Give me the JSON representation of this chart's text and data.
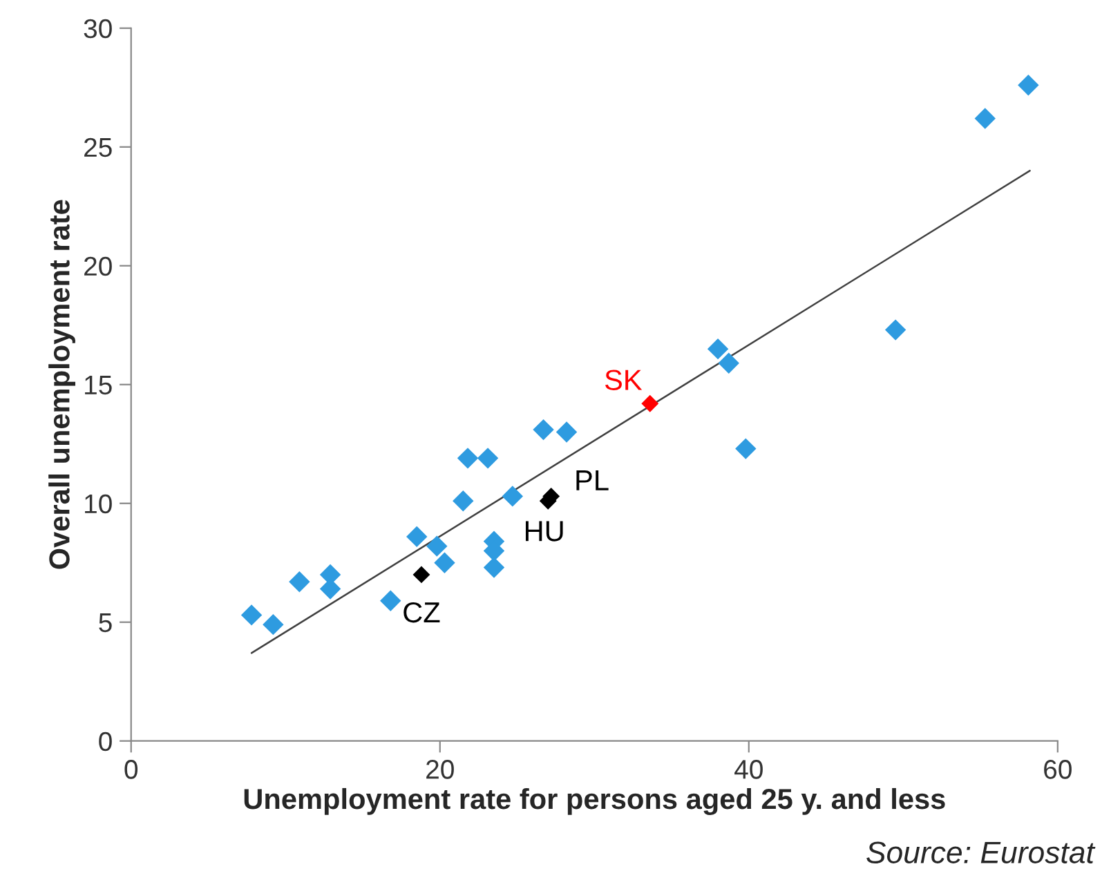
{
  "chart_data": {
    "type": "scatter",
    "xlabel": "Unemployment rate for persons aged 25 y. and less",
    "ylabel": "Overall unemployment rate",
    "xlim": [
      0,
      60
    ],
    "xticks": [
      0,
      20,
      40,
      60
    ],
    "ylim": [
      0,
      30
    ],
    "yticks": [
      0,
      5,
      10,
      15,
      20,
      25,
      30
    ],
    "grid": false,
    "marker": "diamond",
    "series": [
      {
        "color": "#2e9be0",
        "x": [
          7.8,
          9.2,
          10.9,
          12.9,
          12.9,
          16.8,
          18.5,
          19.8,
          20.3,
          21.5,
          21.8,
          23.1,
          23.5,
          23.5,
          23.5,
          24.7,
          26.7,
          28.2,
          38.0,
          38.7,
          39.8,
          49.5,
          55.3,
          58.1
        ],
        "values": [
          5.3,
          4.9,
          6.7,
          7.0,
          6.4,
          5.9,
          8.6,
          8.2,
          7.5,
          10.1,
          11.9,
          11.9,
          8.4,
          8.0,
          7.3,
          10.3,
          13.1,
          13.0,
          16.5,
          15.9,
          12.3,
          17.3,
          26.2,
          27.6
        ]
      },
      {
        "color": "#000000",
        "x": [
          18.8,
          27.2,
          27.0
        ],
        "values": [
          7.0,
          10.3,
          10.1
        ]
      },
      {
        "color": "#ff0000",
        "x": [
          33.6
        ],
        "values": [
          14.2
        ]
      },
      {
        "type": "line",
        "marker": "none",
        "color": "#404040",
        "x": [
          7.8,
          58.2
        ],
        "values": [
          3.7,
          24.0
        ]
      }
    ],
    "annotations": [
      {
        "text": "CZ",
        "x": 18.8,
        "y": 7.0
      },
      {
        "text": "PL",
        "x": 27.2,
        "y": 10.3
      },
      {
        "text": "HU",
        "x": 27.0,
        "y": 10.1
      },
      {
        "text": "SK",
        "x": 33.6,
        "y": 14.2
      },
      "Source: Eurostat"
    ]
  }
}
